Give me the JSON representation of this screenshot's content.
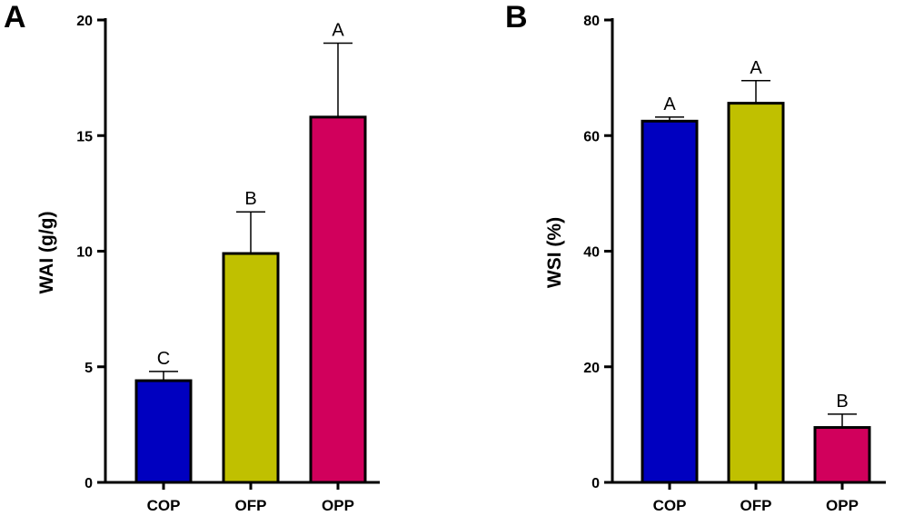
{
  "chart_data": [
    {
      "panel": "A",
      "type": "bar",
      "categories": [
        "COP",
        "OFP",
        "OPP"
      ],
      "values": [
        4.4,
        9.9,
        15.8
      ],
      "errors": [
        0.4,
        1.8,
        3.2
      ],
      "significance": [
        "C",
        "B",
        "A"
      ],
      "colors": [
        "#0000c0",
        "#c0c000",
        "#d1005c"
      ],
      "ylabel": "WAI (g/g)",
      "ylim": [
        0,
        20
      ],
      "yticks": [
        0,
        5,
        10,
        15,
        20
      ],
      "grid": false,
      "legend": "none"
    },
    {
      "panel": "B",
      "type": "bar",
      "categories": [
        "COP",
        "OFP",
        "OPP"
      ],
      "values": [
        62.5,
        65.6,
        9.5
      ],
      "errors": [
        0.7,
        3.9,
        2.3
      ],
      "significance": [
        "A",
        "A",
        "B"
      ],
      "colors": [
        "#0000c0",
        "#c0c000",
        "#d1005c"
      ],
      "ylabel": "WSI (%)",
      "ylim": [
        0,
        80
      ],
      "yticks": [
        0,
        20,
        40,
        60,
        80
      ],
      "grid": false,
      "legend": "none"
    }
  ]
}
